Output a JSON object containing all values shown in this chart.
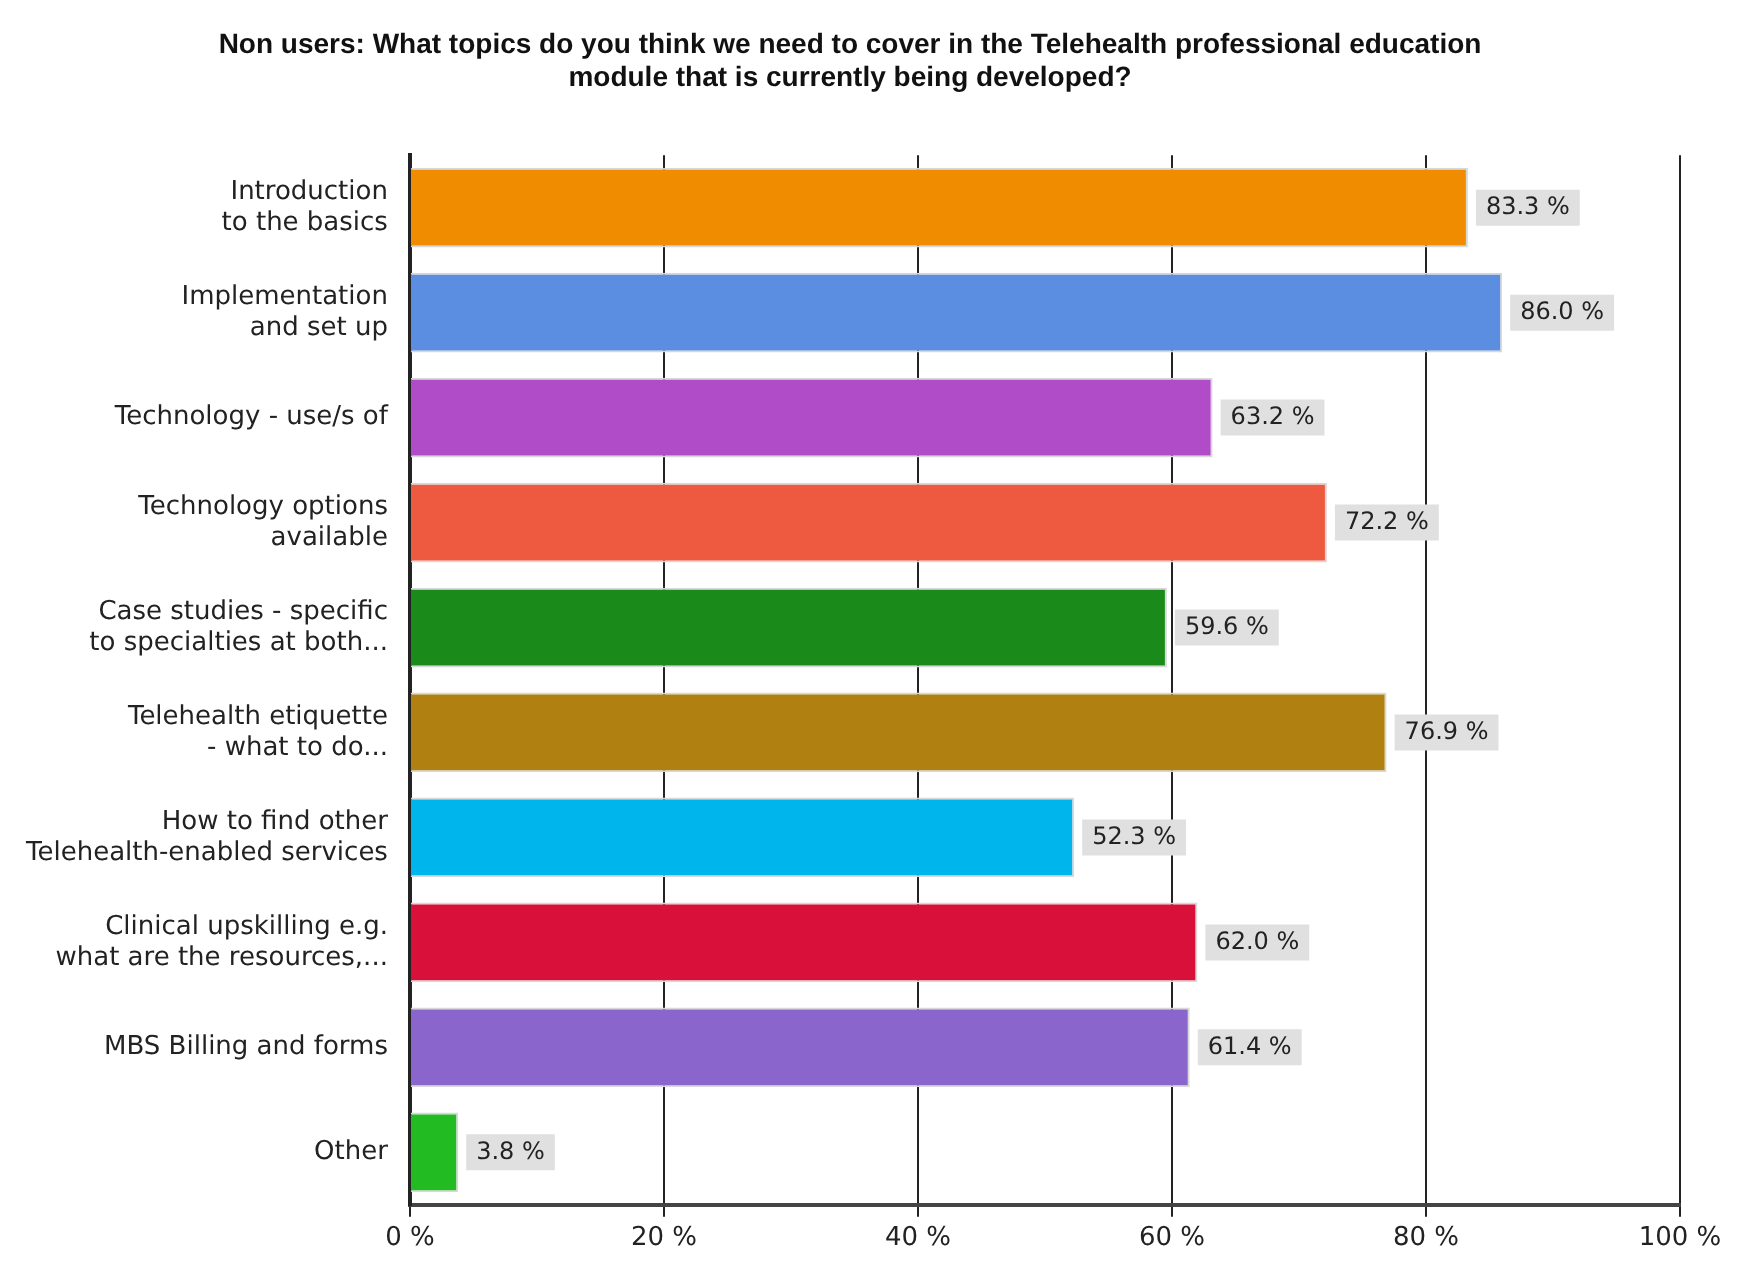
{
  "chart_data": {
    "type": "bar",
    "orientation": "horizontal",
    "title": "Non users: What topics do you think we need to cover in the Telehealth professional education\nmodule that is currently being developed?",
    "categories": [
      "Introduction\nto the basics",
      "Implementation\nand set up",
      "Technology - use/s of",
      "Technology options\navailable",
      "Case studies - specific\nto specialties at both...",
      "Telehealth etiquette\n- what to do...",
      "How to find other\nTelehealth-enabled services",
      "Clinical upskilling e.g.\nwhat are the resources,...",
      "MBS Billing and forms",
      "Other"
    ],
    "values": [
      83.3,
      86.0,
      63.2,
      72.2,
      59.6,
      76.9,
      52.3,
      62.0,
      61.4,
      3.8
    ],
    "colors": [
      "#f08c00",
      "#5b8de0",
      "#b04cc8",
      "#ee5a40",
      "#1a8a1a",
      "#b08010",
      "#00b4ec",
      "#d8103a",
      "#8a66cc",
      "#22bb22"
    ],
    "value_labels": [
      "83.3 %",
      "86.0 %",
      "63.2 %",
      "72.2 %",
      "59.6 %",
      "76.9 %",
      "52.3 %",
      "62.0 %",
      "61.4 %",
      "3.8 %"
    ],
    "xlim": [
      0,
      100
    ],
    "xticks": [
      {
        "value": 0,
        "label": "0 %"
      },
      {
        "value": 20,
        "label": "20 %"
      },
      {
        "value": 40,
        "label": "40 %"
      },
      {
        "value": 60,
        "label": "60 %"
      },
      {
        "value": 80,
        "label": "80 %"
      },
      {
        "value": 100,
        "label": "100 %"
      }
    ],
    "grid": "x",
    "legend": false
  }
}
